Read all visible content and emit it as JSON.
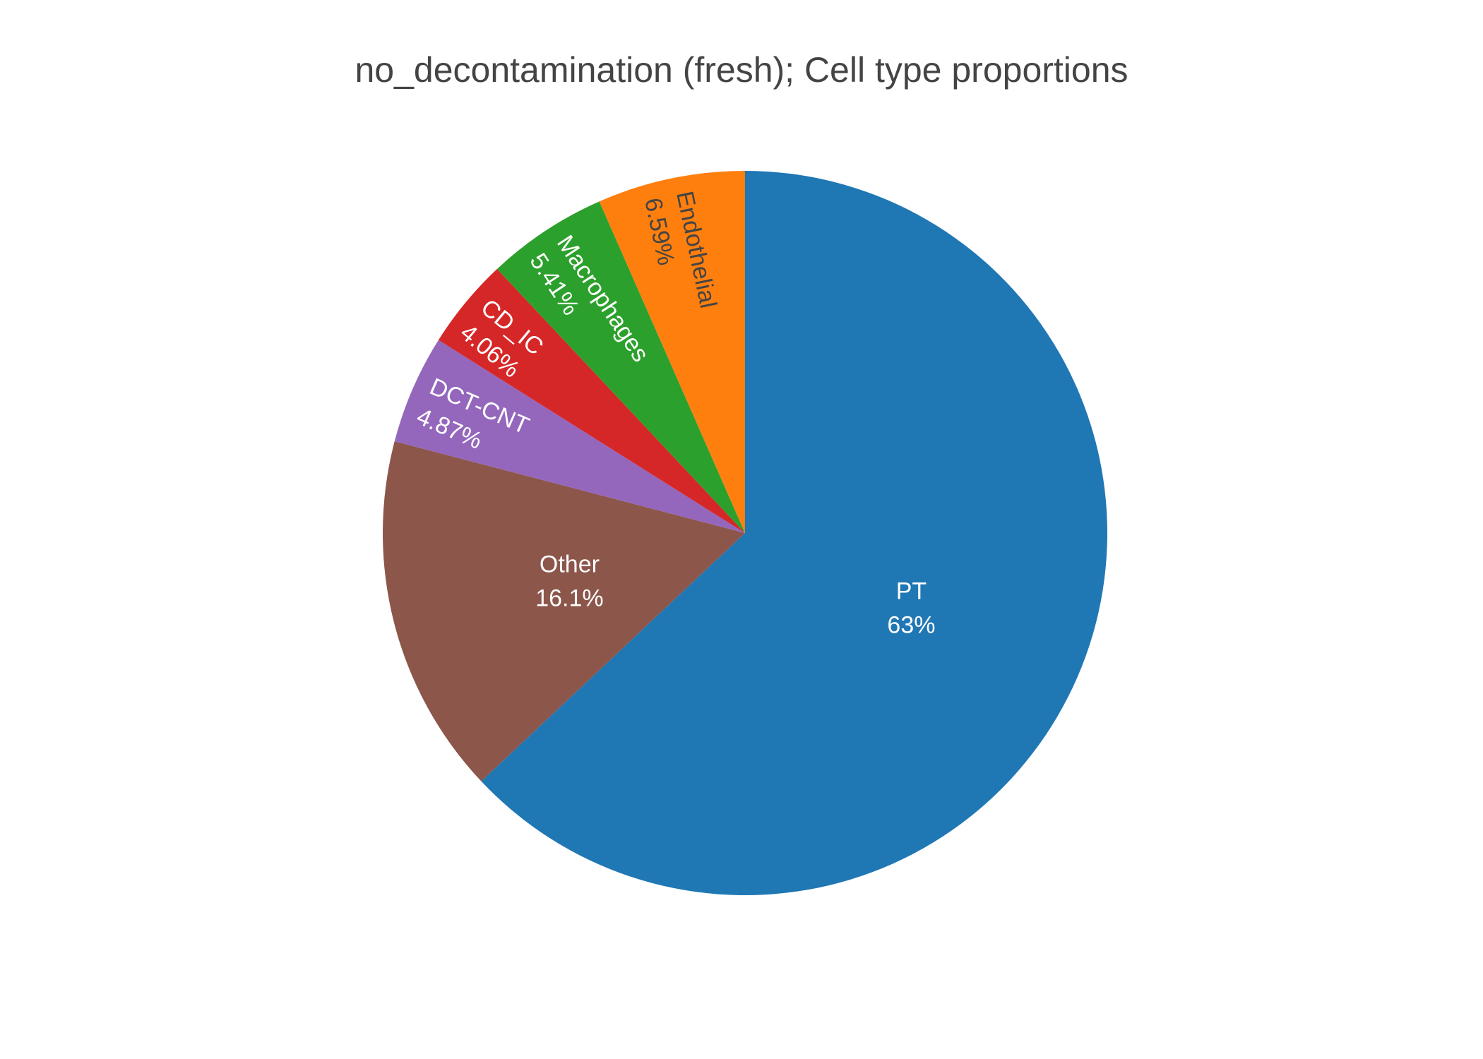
{
  "chart_data": {
    "type": "pie",
    "title": "no_decontamination (fresh); Cell type proportions",
    "direction": "clockwise",
    "start": "top",
    "slices": [
      {
        "label": "PT",
        "value": 63.0,
        "display": "63%",
        "color": "#1f77b4",
        "text_color": "#ffffff",
        "text_mode": "horizontal"
      },
      {
        "label": "Other",
        "value": 16.1,
        "display": "16.1%",
        "color": "#8c564b",
        "text_color": "#ffffff",
        "text_mode": "horizontal"
      },
      {
        "label": "DCT-CNT",
        "value": 4.87,
        "display": "4.87%",
        "color": "#9467bd",
        "text_color": "#ffffff",
        "text_mode": "radial"
      },
      {
        "label": "CD_IC",
        "value": 4.06,
        "display": "4.06%",
        "color": "#d62728",
        "text_color": "#ffffff",
        "text_mode": "radial"
      },
      {
        "label": "Macrophages",
        "value": 5.41,
        "display": "5.41%",
        "color": "#2ca02c",
        "text_color": "#ffffff",
        "text_mode": "radial"
      },
      {
        "label": "Endothelial",
        "value": 6.59,
        "display": "6.59%",
        "color": "#ff7f0e",
        "text_color": "#444444",
        "text_mode": "radial"
      }
    ]
  }
}
